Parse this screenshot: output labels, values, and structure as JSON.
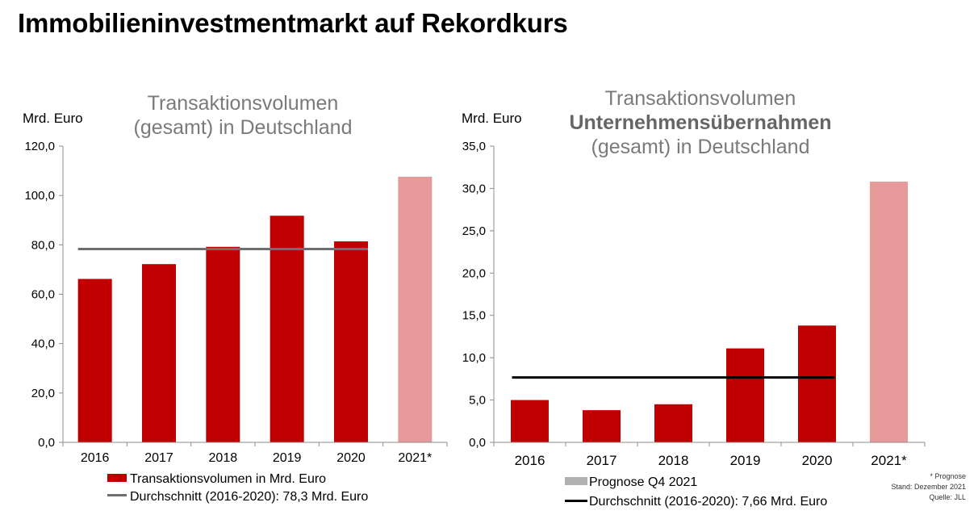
{
  "page": {
    "title": "Immobilieninvestmentmarkt auf Rekordkurs"
  },
  "colors": {
    "actual": "#c00000",
    "forecast": "#e69a9a",
    "average_left": "#6e6e6e",
    "average_right": "#000000",
    "forecast_legend": "#b0b0b0"
  },
  "chart_data": [
    {
      "type": "bar",
      "title_lines": [
        "Transaktionsvolumen",
        "(gesamt) in Deutschland"
      ],
      "ylabel": "Mrd. Euro",
      "ylim": [
        0,
        120
      ],
      "yticks": [
        "0,0",
        "20,0",
        "40,0",
        "60,0",
        "80,0",
        "100,0",
        "120,0"
      ],
      "categories": [
        "2016",
        "2017",
        "2018",
        "2019",
        "2020",
        "2021*"
      ],
      "values": [
        66.2,
        72.2,
        79.2,
        91.8,
        81.4,
        107.6
      ],
      "forecast_index": 5,
      "average": 78.3,
      "legend": [
        "Transaktionsvolumen in Mrd. Euro",
        "Durchschnitt (2016-2020): 78,3 Mrd. Euro"
      ],
      "grid": false
    },
    {
      "type": "bar",
      "title_lines": [
        "Transaktionsvolumen",
        "Unternehmensübernahmen",
        "(gesamt) in Deutschland"
      ],
      "ylabel": "Mrd. Euro",
      "ylim": [
        0,
        35
      ],
      "yticks": [
        "0,0",
        "5,0",
        "10,0",
        "15,0",
        "20,0",
        "25,0",
        "30,0",
        "35,0"
      ],
      "categories": [
        "2016",
        "2017",
        "2018",
        "2019",
        "2020",
        "2021*"
      ],
      "values": [
        5.0,
        3.8,
        4.5,
        11.1,
        13.8,
        30.8
      ],
      "forecast_index": 5,
      "average": 7.66,
      "legend": [
        "Prognose Q4 2021",
        "Durchschnitt (2016-2020): 7,66 Mrd. Euro"
      ],
      "grid": false
    }
  ],
  "notes": [
    "* Prognose",
    "Stand: Dezember 2021",
    "Quelle: JLL"
  ]
}
